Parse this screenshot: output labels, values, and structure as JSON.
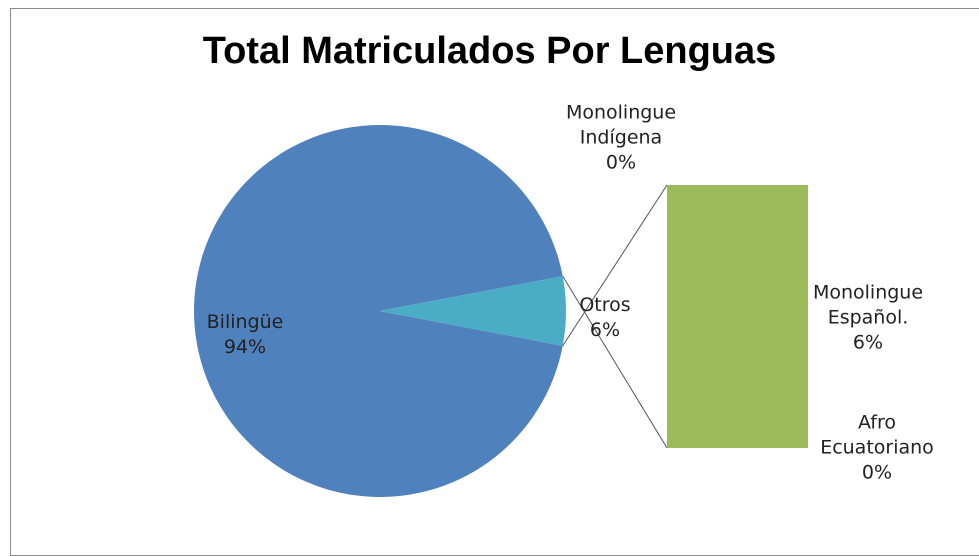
{
  "chart_data": {
    "type": "pie",
    "subtype": "bar_of_pie",
    "title": "Total Matriculados Por Lenguas",
    "categories": [
      "Bilingüe",
      "Otros"
    ],
    "values": [
      94,
      6
    ],
    "value_labels": [
      "94%",
      "6%"
    ],
    "colors": [
      "#4f81bd",
      "#4bacc6"
    ],
    "secondary": {
      "categories": [
        "Monolingue Indígena",
        "Monolingue Español.",
        "Afro Ecuatoriano"
      ],
      "values": [
        0,
        6,
        0
      ],
      "value_labels": [
        "0%",
        "6%",
        "0%"
      ],
      "color": "#9bbb59"
    }
  }
}
